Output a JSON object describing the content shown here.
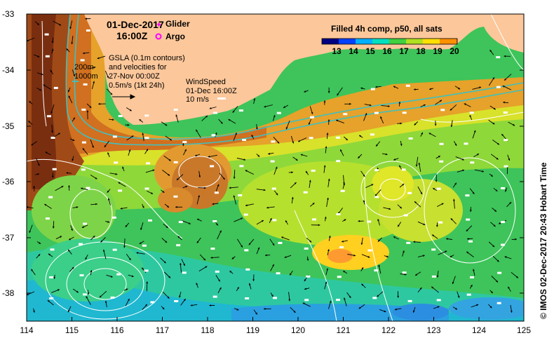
{
  "map": {
    "date": "01-Dec-2017",
    "time": "16:00Z",
    "legend_glider": "Glider",
    "legend_argo": "Argo",
    "colorbar_title": "Filled 4h comp, p50, all sats",
    "colorbar_ticks": [
      "13",
      "14",
      "15",
      "16",
      "17",
      "18",
      "19",
      "20"
    ],
    "gsla_lines": [
      "GSLA (0.1m contours)",
      "and velocities for",
      "27-Nov 00:00Z",
      "0.5m/s (1kt 24h)"
    ],
    "isobath_labels": [
      "200m",
      "1000m"
    ],
    "wind_lines": [
      "WindSpeed",
      "01-Dec 16:00Z",
      "10 m/s"
    ],
    "credit": "© IMOS 02-Dec-2017 20:43 Hobart Time",
    "lat_ticks": [
      "-33",
      "-34",
      "-35",
      "-36",
      "-37",
      "-38"
    ],
    "lon_ticks": [
      "114",
      "115",
      "116",
      "117",
      "118",
      "119",
      "120",
      "121",
      "122",
      "123",
      "124",
      "125"
    ],
    "lat_range": [
      -38.5,
      -33
    ],
    "lon_range": [
      114,
      125
    ],
    "colors": {
      "land": "#fcc79a",
      "sst_cold": "#00b0d0",
      "sst_warm": "#c04000",
      "contour": "#ffffff",
      "isobath": "#40c0c0",
      "glider_marker": "#ff00ff",
      "argo_marker": "#ff00ff"
    },
    "colorbar_colors": [
      "#000080",
      "#0040ff",
      "#00b0ff",
      "#00e0c0",
      "#40d040",
      "#b0e020",
      "#ffe000",
      "#ff9000",
      "#e04000",
      "#a00000"
    ]
  }
}
